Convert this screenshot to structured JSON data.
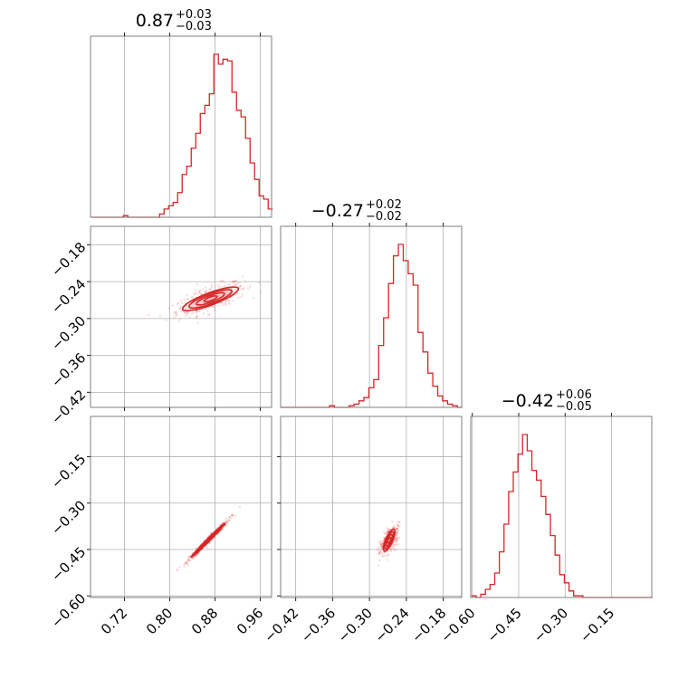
{
  "chart_data": {
    "type": "corner",
    "color": "#d62728",
    "contour_fill": "#f4c2c4",
    "grid": true,
    "parameters": [
      {
        "name": "",
        "range": [
          0.66,
          0.98
        ],
        "ticks": [
          0.72,
          0.8,
          0.88,
          0.96
        ],
        "tick_labels": [
          "0.72",
          "0.80",
          "0.88",
          "0.96"
        ],
        "title": {
          "median": "0.87",
          "plus": "+0.03",
          "minus": "−0.03"
        },
        "hist_x": [
          0.666,
          0.674,
          0.682,
          0.69,
          0.698,
          0.706,
          0.714,
          0.722,
          0.73,
          0.738,
          0.746,
          0.754,
          0.762,
          0.77,
          0.778,
          0.786,
          0.794,
          0.802,
          0.81,
          0.818,
          0.826,
          0.834,
          0.842,
          0.85,
          0.858,
          0.866,
          0.874,
          0.882,
          0.89,
          0.898,
          0.906,
          0.914,
          0.922,
          0.93,
          0.938,
          0.946,
          0.954,
          0.962,
          0.97,
          0.978
        ],
        "hist_y": [
          0,
          0,
          0,
          0,
          0,
          0,
          0,
          0.01,
          0,
          0,
          0,
          0,
          0,
          0,
          0,
          0.02,
          0.05,
          0.07,
          0.09,
          0.15,
          0.26,
          0.31,
          0.42,
          0.51,
          0.63,
          0.68,
          0.75,
          0.99,
          0.93,
          0.96,
          0.95,
          0.76,
          0.65,
          0.61,
          0.48,
          0.33,
          0.23,
          0.13,
          0.11,
          0.05
        ]
      },
      {
        "name": "",
        "range": [
          -0.4445,
          -0.15
        ],
        "ticks": [
          -0.42,
          -0.36,
          -0.3,
          -0.24,
          -0.18
        ],
        "tick_labels": [
          "−0.42",
          "−0.36",
          "−0.30",
          "−0.24",
          "−0.18"
        ],
        "title": {
          "median": "−0.27",
          "plus": "+0.02",
          "minus": "−0.02"
        },
        "hist_x": [
          -0.441,
          -0.433,
          -0.425,
          -0.417,
          -0.409,
          -0.401,
          -0.393,
          -0.385,
          -0.377,
          -0.369,
          -0.361,
          -0.353,
          -0.345,
          -0.337,
          -0.329,
          -0.321,
          -0.313,
          -0.305,
          -0.297,
          -0.289,
          -0.281,
          -0.273,
          -0.265,
          -0.257,
          -0.249,
          -0.241,
          -0.233,
          -0.225,
          -0.217,
          -0.209,
          -0.201,
          -0.193,
          -0.185,
          -0.177,
          -0.169,
          -0.161,
          -0.153
        ],
        "hist_y": [
          0,
          0,
          0,
          0,
          0,
          0,
          0,
          0,
          0,
          0,
          0.01,
          0,
          0,
          0,
          0.01,
          0.02,
          0.04,
          0.06,
          0.12,
          0.17,
          0.38,
          0.55,
          0.76,
          0.93,
          1.0,
          0.9,
          0.82,
          0.75,
          0.46,
          0.34,
          0.21,
          0.13,
          0.07,
          0.04,
          0.02,
          0.01,
          0
        ]
      },
      {
        "name": "",
        "range": [
          -0.605,
          -0.02
        ],
        "ticks": [
          -0.6,
          -0.45,
          -0.3,
          -0.15
        ],
        "tick_labels": [
          "−0.60",
          "−0.45",
          "−0.30",
          "−0.15"
        ],
        "title": {
          "median": "−0.42",
          "plus": "+0.06",
          "minus": "−0.05"
        },
        "hist_x": [
          -0.595,
          -0.58,
          -0.565,
          -0.55,
          -0.535,
          -0.52,
          -0.505,
          -0.49,
          -0.475,
          -0.46,
          -0.445,
          -0.43,
          -0.415,
          -0.4,
          -0.385,
          -0.37,
          -0.355,
          -0.34,
          -0.325,
          -0.31,
          -0.295,
          -0.28,
          -0.265,
          -0.25,
          -0.235,
          -0.22,
          -0.205,
          -0.19,
          -0.175,
          -0.16,
          -0.145,
          -0.13,
          -0.115,
          -0.1,
          -0.085,
          -0.07,
          -0.055,
          -0.04,
          -0.025
        ],
        "hist_y": [
          0.01,
          0,
          0.02,
          0.05,
          0.08,
          0.15,
          0.28,
          0.45,
          0.65,
          0.77,
          0.88,
          1.0,
          0.9,
          0.78,
          0.72,
          0.62,
          0.51,
          0.38,
          0.26,
          0.14,
          0.09,
          0.04,
          0.01,
          0.01,
          0,
          0,
          0,
          0,
          0,
          0,
          0,
          0,
          0,
          0,
          0,
          0,
          0,
          0,
          0
        ]
      }
    ],
    "scatter": [
      {
        "pair": [
          0,
          1
        ],
        "center": [
          0.872,
          -0.268
        ],
        "slope": 0.34,
        "contours": [
          {
            "semi_major": 0.052,
            "semi_minor": 0.01
          },
          {
            "semi_major": 0.04,
            "semi_minor": 0.008
          },
          {
            "semi_major": 0.026,
            "semi_minor": 0.0055
          },
          {
            "semi_major": 0.012,
            "semi_minor": 0.003
          }
        ]
      },
      {
        "pair": [
          0,
          2
        ],
        "center": [
          0.868,
          -0.42
        ],
        "slope": 1.85,
        "contours": [
          {
            "semi_major": 0.062,
            "semi_minor": 0.003
          },
          {
            "semi_major": 0.048,
            "semi_minor": 0.0024
          },
          {
            "semi_major": 0.032,
            "semi_minor": 0.0018
          },
          {
            "semi_major": 0.016,
            "semi_minor": 0.001
          }
        ]
      },
      {
        "pair": [
          1,
          2
        ],
        "center": [
          -0.268,
          -0.42
        ],
        "slope": 4.9,
        "contours": [
          {
            "semi_major": 0.036,
            "semi_minor": 0.006
          },
          {
            "semi_major": 0.028,
            "semi_minor": 0.0048
          },
          {
            "semi_major": 0.019,
            "semi_minor": 0.0035
          },
          {
            "semi_major": 0.009,
            "semi_minor": 0.002
          }
        ]
      }
    ]
  }
}
